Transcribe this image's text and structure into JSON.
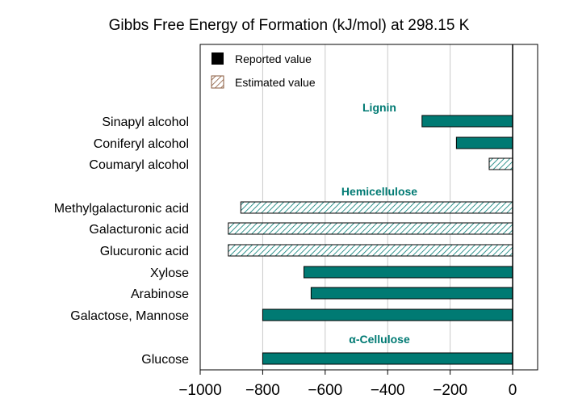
{
  "chart_data": {
    "type": "bar",
    "orientation": "horizontal",
    "title": "Gibbs Free Energy of Formation (kJ/mol) at 298.15 K",
    "xlabel": "",
    "ylabel": "",
    "xlim": [
      -1000,
      80
    ],
    "xticks": [
      -1000,
      -800,
      -600,
      -400,
      -200,
      0
    ],
    "grid": "vertical",
    "legend_position": "top-left",
    "legend": [
      {
        "label": "Reported value",
        "style": "solid",
        "color": "#000000"
      },
      {
        "label": "Estimated value",
        "style": "hatched",
        "color": "#8a5a3c"
      }
    ],
    "colors": {
      "bar": "#007a73",
      "bar_edge": "#000000",
      "group_label": "#007a73",
      "grid": "#c8c8c8"
    },
    "groups": [
      {
        "name": "Lignin",
        "categories": [
          {
            "label": "Sinapyl alcohol",
            "value": -290,
            "estimated": false
          },
          {
            "label": "Coniferyl alcohol",
            "value": -180,
            "estimated": false
          },
          {
            "label": "Coumaryl alcohol",
            "value": -75,
            "estimated": true
          }
        ]
      },
      {
        "name": "Hemicellulose",
        "categories": [
          {
            "label": "Methylgalacturonic acid",
            "value": -870,
            "estimated": true
          },
          {
            "label": "Galacturonic acid",
            "value": -910,
            "estimated": true
          },
          {
            "label": "Glucuronic acid",
            "value": -910,
            "estimated": true
          },
          {
            "label": "Xylose",
            "value": -668,
            "estimated": false
          },
          {
            "label": "Arabinose",
            "value": -645,
            "estimated": false
          },
          {
            "label": "Galactose, Mannose",
            "value": -800,
            "estimated": false
          }
        ]
      },
      {
        "name": "α-Cellulose",
        "categories": [
          {
            "label": "Glucose",
            "value": -800,
            "estimated": false
          }
        ]
      }
    ]
  }
}
